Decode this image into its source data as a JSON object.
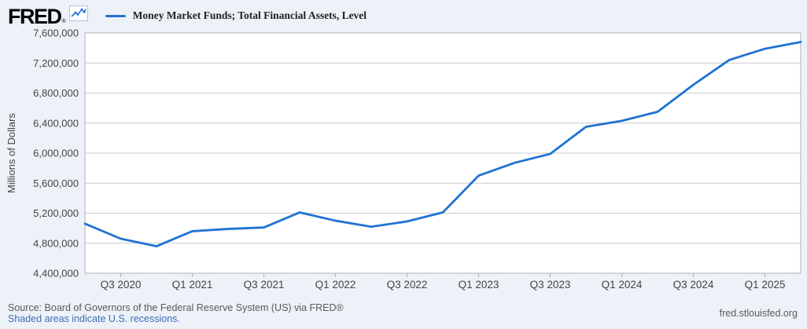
{
  "header": {
    "logo_text": "FRED",
    "registered_mark": "®",
    "legend": {
      "series_label": "Money Market Funds; Total Financial Assets, Level"
    }
  },
  "chart_data": {
    "type": "line",
    "title": "Money Market Funds; Total Financial Assets, Level",
    "ylabel": "Millions of Dollars",
    "xlabel": "",
    "ylim": [
      4400000,
      7600000
    ],
    "grid": true,
    "legend_position": "top-left header",
    "y_ticks": [
      4400000,
      4800000,
      5200000,
      5600000,
      6000000,
      6400000,
      6800000,
      7200000,
      7600000
    ],
    "x_tick_labels": [
      "Q3 2020",
      "Q1 2021",
      "Q3 2021",
      "Q1 2022",
      "Q3 2022",
      "Q1 2023",
      "Q3 2023",
      "Q1 2024",
      "Q3 2024",
      "Q1 2025"
    ],
    "series": [
      {
        "name": "Money Market Funds; Total Financial Assets, Level",
        "x": [
          "Q2 2020",
          "Q3 2020",
          "Q4 2020",
          "Q1 2021",
          "Q2 2021",
          "Q3 2021",
          "Q4 2021",
          "Q1 2022",
          "Q2 2022",
          "Q3 2022",
          "Q4 2022",
          "Q1 2023",
          "Q2 2023",
          "Q3 2023",
          "Q4 2023",
          "Q1 2024",
          "Q2 2024",
          "Q3 2024",
          "Q4 2024",
          "Q1 2025",
          "Q2 2025"
        ],
        "values": [
          5060000,
          4860000,
          4760000,
          4960000,
          4990000,
          5010000,
          5210000,
          5100000,
          5020000,
          5090000,
          5210000,
          5700000,
          5870000,
          5990000,
          6350000,
          6430000,
          6550000,
          6910000,
          7240000,
          7390000,
          7480000
        ]
      }
    ]
  },
  "footer": {
    "source_line": "Source: Board of Governors of the Federal Reserve System (US) via FRED®",
    "recessions_link": "Shaded areas indicate U.S. recessions.",
    "site_link": "fred.stlouisfed.org"
  },
  "colors": {
    "line": "#2172d2",
    "link": "#3c6eb5",
    "grid": "#cccccc",
    "frame": "#b0b0b0",
    "axis_text": "#444444",
    "background": "#edf2f8",
    "plot_background": "#ffffff"
  }
}
